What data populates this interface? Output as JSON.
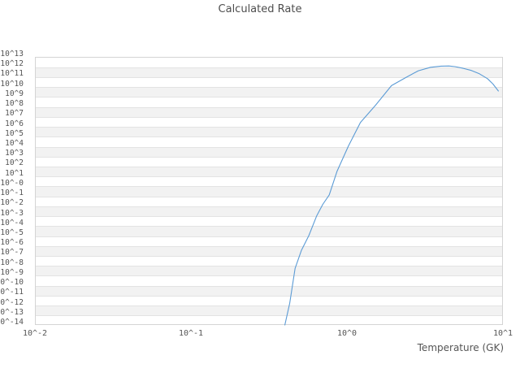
{
  "chart_data": {
    "type": "line",
    "title": "Calculated Rate",
    "xlabel": "Temperature (GK)",
    "ylabel": "",
    "x_scale": "log",
    "y_scale": "log",
    "x_range_log10": [
      -2,
      1
    ],
    "y_range_log10": [
      -14,
      13
    ],
    "grid": "horizontal gridlines with alternating shaded decade bands",
    "legend": "none",
    "x_ticks": [
      {
        "label": "10^-2",
        "log10": -2
      },
      {
        "label": "10^-1",
        "log10": -1
      },
      {
        "label": "10^0",
        "log10": 0
      },
      {
        "label": "10^1",
        "log10": 1
      }
    ],
    "y_ticks": [
      {
        "label": "10^13",
        "log10": 13
      },
      {
        "label": "10^12",
        "log10": 12
      },
      {
        "label": "10^11",
        "log10": 11
      },
      {
        "label": "10^10",
        "log10": 10
      },
      {
        "label": "10^9",
        "log10": 9
      },
      {
        "label": "10^8",
        "log10": 8
      },
      {
        "label": "10^7",
        "log10": 7
      },
      {
        "label": "10^6",
        "log10": 6
      },
      {
        "label": "10^5",
        "log10": 5
      },
      {
        "label": "10^4",
        "log10": 4
      },
      {
        "label": "10^3",
        "log10": 3
      },
      {
        "label": "10^2",
        "log10": 2
      },
      {
        "label": "10^1",
        "log10": 1
      },
      {
        "label": "10^-0",
        "log10": 0
      },
      {
        "label": "10^-1",
        "log10": -1
      },
      {
        "label": "10^-2",
        "log10": -2
      },
      {
        "label": "10^-3",
        "log10": -3
      },
      {
        "label": "10^-4",
        "log10": -4
      },
      {
        "label": "10^-5",
        "log10": -5
      },
      {
        "label": "10^-6",
        "log10": -6
      },
      {
        "label": "10^-7",
        "log10": -7
      },
      {
        "label": "10^-8",
        "log10": -8
      },
      {
        "label": "10^-9",
        "log10": -9
      },
      {
        "label": "10^-10",
        "log10": -10
      },
      {
        "label": "10^-11",
        "log10": -11
      },
      {
        "label": "10^-12",
        "log10": -12
      },
      {
        "label": "10^-13",
        "log10": -13
      },
      {
        "label": "10^-14",
        "log10": -14
      }
    ],
    "series": [
      {
        "name": "calculated rate",
        "color": "#5b9bd5",
        "points_T_GK_vs_log10_rate": [
          [
            0.4,
            -14.0
          ],
          [
            0.43,
            -11.8
          ],
          [
            0.465,
            -8.3
          ],
          [
            0.51,
            -6.5
          ],
          [
            0.57,
            -5.0
          ],
          [
            0.64,
            -3.0
          ],
          [
            0.7,
            -1.85
          ],
          [
            0.77,
            -0.9
          ],
          [
            0.865,
            1.5
          ],
          [
            1.02,
            4.0
          ],
          [
            1.22,
            6.4
          ],
          [
            1.52,
            8.1
          ],
          [
            1.93,
            10.1
          ],
          [
            2.4,
            10.95
          ],
          [
            2.87,
            11.6
          ],
          [
            3.44,
            11.95
          ],
          [
            4.0,
            12.07
          ],
          [
            4.5,
            12.08
          ],
          [
            4.93,
            12.02
          ],
          [
            5.56,
            11.85
          ],
          [
            6.27,
            11.63
          ],
          [
            7.06,
            11.3
          ],
          [
            7.96,
            10.81
          ],
          [
            8.63,
            10.27
          ],
          [
            9.35,
            9.56
          ]
        ]
      }
    ],
    "colors": {
      "curve": "#5b9bd5",
      "band_fill": "#f2f2f2",
      "gridline": "#e3e3e3",
      "frame": "#d4d4d4",
      "text": "#555555",
      "background": "#ffffff"
    }
  }
}
